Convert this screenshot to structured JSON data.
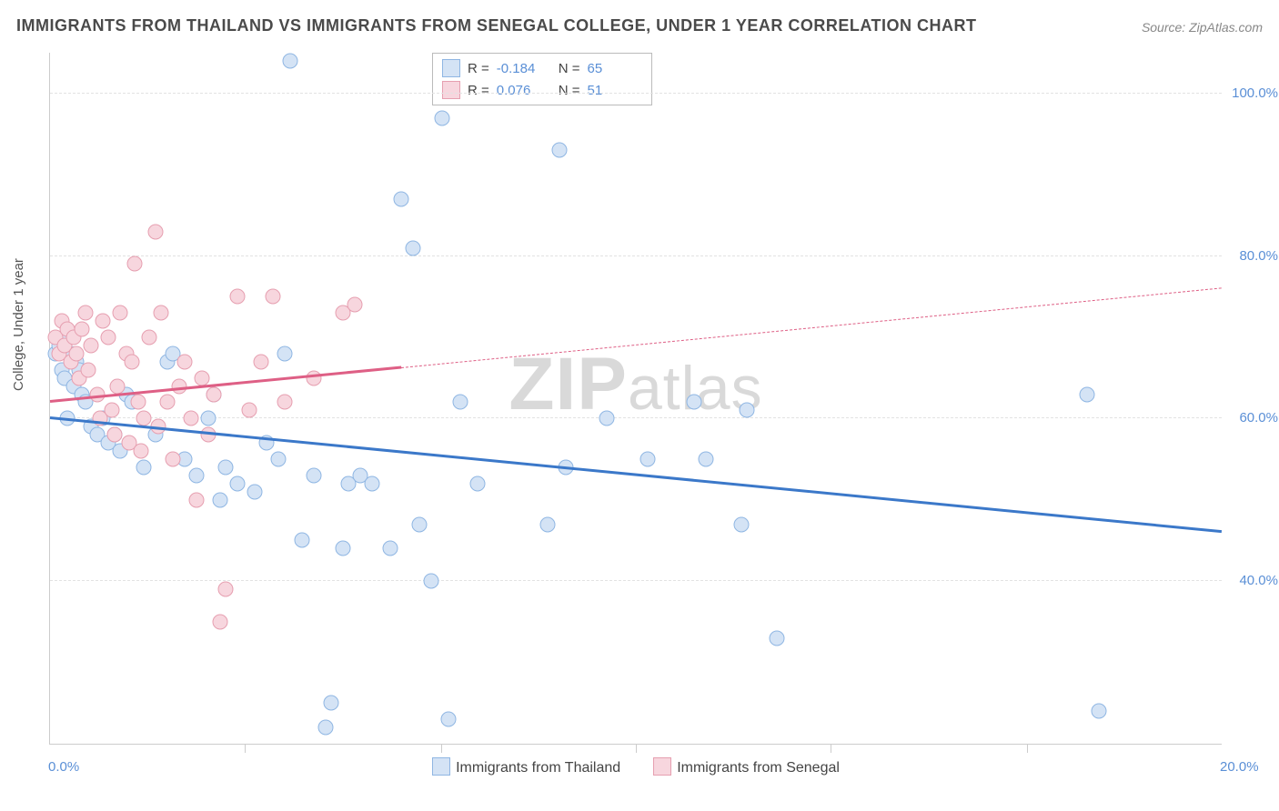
{
  "title": "IMMIGRANTS FROM THAILAND VS IMMIGRANTS FROM SENEGAL COLLEGE, UNDER 1 YEAR CORRELATION CHART",
  "source": "Source: ZipAtlas.com",
  "ylabel": "College, Under 1 year",
  "watermark_bold": "ZIP",
  "watermark_rest": "atlas",
  "chart": {
    "type": "scatter",
    "xlim": [
      0,
      20
    ],
    "ylim": [
      20,
      105
    ],
    "ytick_values": [
      40,
      60,
      80,
      100
    ],
    "ytick_labels": [
      "40.0%",
      "60.0%",
      "80.0%",
      "100.0%"
    ],
    "xtick_values": [
      0,
      20
    ],
    "xtick_labels": [
      "0.0%",
      "20.0%"
    ],
    "xtick_minor": [
      3.33,
      6.67,
      10,
      13.33,
      16.67
    ],
    "background_color": "#ffffff",
    "grid_color": "#e2e2e2",
    "axis_color": "#cccccc",
    "tick_label_color": "#5a8fd6",
    "series": [
      {
        "name": "Immigrants from Thailand",
        "marker_fill": "#d4e3f5",
        "marker_stroke": "#8fb6e3",
        "line_color": "#3b78c9",
        "R": "-0.184",
        "N": "65",
        "trend": {
          "x1": 0,
          "y1": 60,
          "x2": 20,
          "y2": 46,
          "dashed_from_x": null
        },
        "points": [
          [
            0.1,
            68
          ],
          [
            0.2,
            66
          ],
          [
            0.3,
            70
          ],
          [
            0.25,
            65
          ],
          [
            0.35,
            68
          ],
          [
            0.4,
            64
          ],
          [
            0.45,
            67
          ],
          [
            0.5,
            66
          ],
          [
            0.55,
            63
          ],
          [
            0.3,
            60
          ],
          [
            0.6,
            62
          ],
          [
            0.7,
            59
          ],
          [
            0.8,
            58
          ],
          [
            0.9,
            60
          ],
          [
            1.0,
            57
          ],
          [
            1.1,
            58
          ],
          [
            1.2,
            56
          ],
          [
            1.3,
            63
          ],
          [
            1.4,
            62
          ],
          [
            1.6,
            54
          ],
          [
            1.8,
            58
          ],
          [
            2.0,
            67
          ],
          [
            2.1,
            68
          ],
          [
            2.3,
            55
          ],
          [
            2.5,
            53
          ],
          [
            2.7,
            60
          ],
          [
            2.8,
            63
          ],
          [
            2.9,
            50
          ],
          [
            3.0,
            54
          ],
          [
            3.2,
            52
          ],
          [
            3.5,
            51
          ],
          [
            3.7,
            57
          ],
          [
            3.9,
            55
          ],
          [
            4.0,
            68
          ],
          [
            4.1,
            104
          ],
          [
            4.3,
            45
          ],
          [
            4.5,
            53
          ],
          [
            4.7,
            22
          ],
          [
            4.8,
            25
          ],
          [
            5.0,
            44
          ],
          [
            5.1,
            52
          ],
          [
            5.3,
            53
          ],
          [
            5.5,
            52
          ],
          [
            5.8,
            44
          ],
          [
            6.0,
            87
          ],
          [
            6.2,
            81
          ],
          [
            6.3,
            47
          ],
          [
            6.5,
            40
          ],
          [
            6.7,
            97
          ],
          [
            6.8,
            23
          ],
          [
            7.0,
            62
          ],
          [
            7.3,
            52
          ],
          [
            8.5,
            47
          ],
          [
            8.7,
            93
          ],
          [
            8.8,
            54
          ],
          [
            9.5,
            60
          ],
          [
            10.2,
            55
          ],
          [
            11.0,
            62
          ],
          [
            11.2,
            55
          ],
          [
            11.8,
            47
          ],
          [
            11.9,
            61
          ],
          [
            12.4,
            33
          ],
          [
            17.7,
            63
          ],
          [
            17.9,
            24
          ],
          [
            0.15,
            69
          ]
        ]
      },
      {
        "name": "Immigrants from Senegal",
        "marker_fill": "#f7d6de",
        "marker_stroke": "#e69fb0",
        "line_color": "#de5f85",
        "R": "0.076",
        "N": "51",
        "trend": {
          "x1": 0,
          "y1": 62,
          "x2": 20,
          "y2": 76,
          "dashed_from_x": 6
        },
        "points": [
          [
            0.1,
            70
          ],
          [
            0.15,
            68
          ],
          [
            0.2,
            72
          ],
          [
            0.25,
            69
          ],
          [
            0.3,
            71
          ],
          [
            0.35,
            67
          ],
          [
            0.4,
            70
          ],
          [
            0.45,
            68
          ],
          [
            0.5,
            65
          ],
          [
            0.55,
            71
          ],
          [
            0.6,
            73
          ],
          [
            0.65,
            66
          ],
          [
            0.7,
            69
          ],
          [
            0.8,
            63
          ],
          [
            0.85,
            60
          ],
          [
            0.9,
            72
          ],
          [
            1.0,
            70
          ],
          [
            1.05,
            61
          ],
          [
            1.1,
            58
          ],
          [
            1.15,
            64
          ],
          [
            1.2,
            73
          ],
          [
            1.3,
            68
          ],
          [
            1.35,
            57
          ],
          [
            1.4,
            67
          ],
          [
            1.45,
            79
          ],
          [
            1.5,
            62
          ],
          [
            1.55,
            56
          ],
          [
            1.6,
            60
          ],
          [
            1.7,
            70
          ],
          [
            1.8,
            83
          ],
          [
            1.85,
            59
          ],
          [
            1.9,
            73
          ],
          [
            2.0,
            62
          ],
          [
            2.1,
            55
          ],
          [
            2.2,
            64
          ],
          [
            2.3,
            67
          ],
          [
            2.4,
            60
          ],
          [
            2.5,
            50
          ],
          [
            2.6,
            65
          ],
          [
            2.7,
            58
          ],
          [
            2.8,
            63
          ],
          [
            2.9,
            35
          ],
          [
            3.0,
            39
          ],
          [
            3.2,
            75
          ],
          [
            3.4,
            61
          ],
          [
            3.6,
            67
          ],
          [
            3.8,
            75
          ],
          [
            4.0,
            62
          ],
          [
            4.5,
            65
          ],
          [
            5.0,
            73
          ],
          [
            5.2,
            74
          ]
        ]
      }
    ],
    "legend_bottom": [
      {
        "label": "Immigrants from Thailand",
        "fill": "#d4e3f5",
        "stroke": "#8fb6e3"
      },
      {
        "label": "Immigrants from Senegal",
        "fill": "#f7d6de",
        "stroke": "#e69fb0"
      }
    ],
    "title_fontsize": 18,
    "label_fontsize": 15,
    "marker_radius": 8.5
  }
}
